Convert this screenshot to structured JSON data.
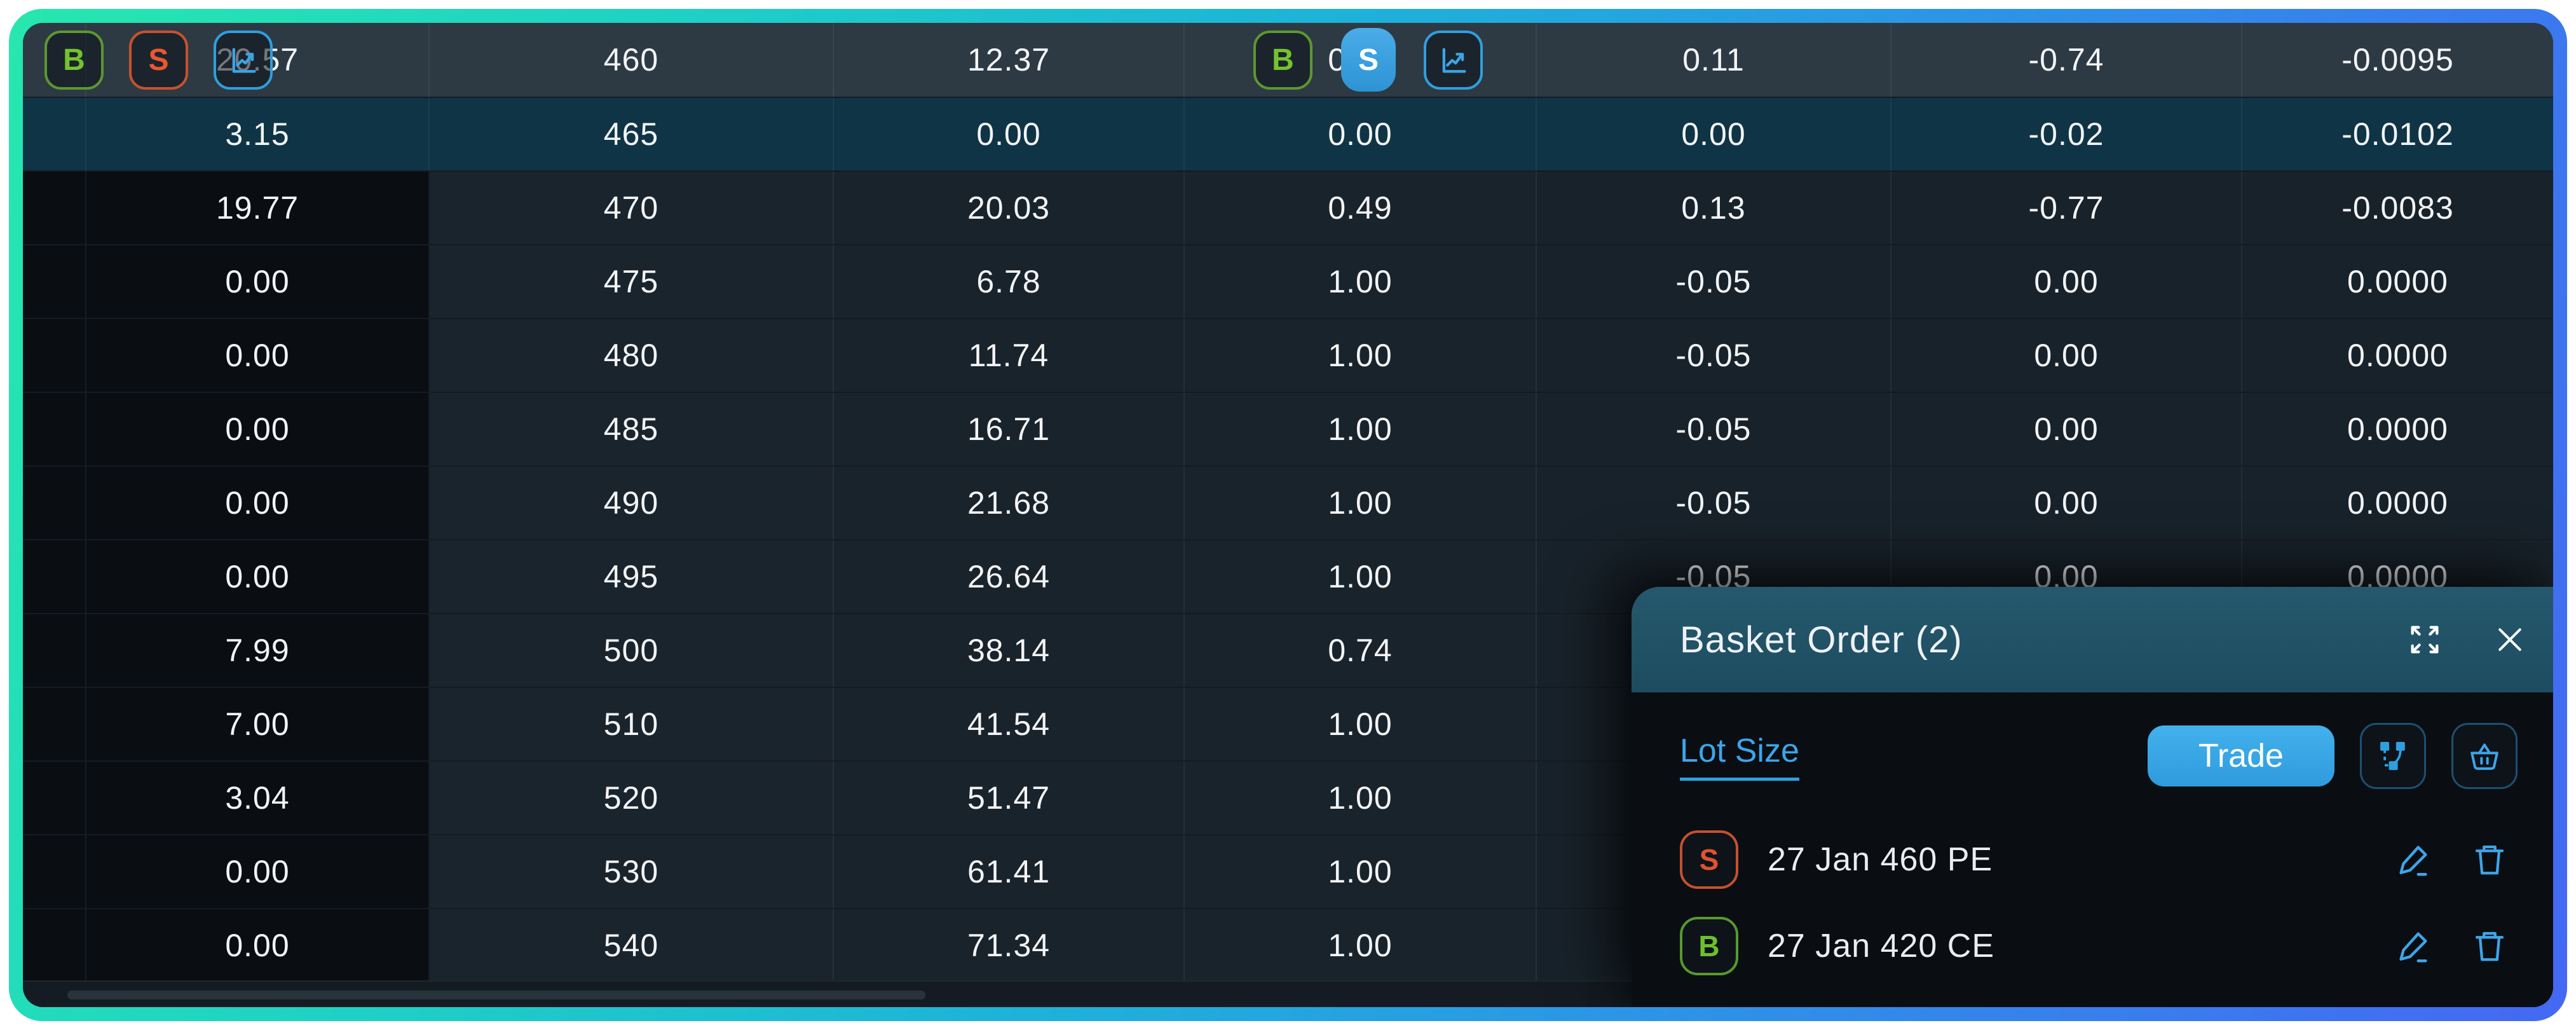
{
  "colors": {
    "accent_blue": "#2f9fe0",
    "buy_green": "#6cbf2d",
    "sell_red": "#e2522e",
    "border_gradient_start": "#27e7ae",
    "border_gradient_end": "#4468f2",
    "row_hover_bg": "#2d3a44",
    "row_atm_bg": "#0f3445",
    "popup_header_bg": "#225468"
  },
  "option_chain": {
    "rows": [
      {
        "c1": "20.57",
        "strike": "460",
        "c3": "12.37",
        "c4": "0.44",
        "c5": "0.11",
        "c6": "-0.74",
        "c7": "-0.0095"
      },
      {
        "c1": "3.15",
        "strike": "465",
        "c3": "0.00",
        "c4": "0.00",
        "c5": "0.00",
        "c6": "-0.02",
        "c7": "-0.0102"
      },
      {
        "c1": "19.77",
        "strike": "470",
        "c3": "20.03",
        "c4": "0.49",
        "c5": "0.13",
        "c6": "-0.77",
        "c7": "-0.0083"
      },
      {
        "c1": "0.00",
        "strike": "475",
        "c3": "6.78",
        "c4": "1.00",
        "c5": "-0.05",
        "c6": "0.00",
        "c7": "0.0000"
      },
      {
        "c1": "0.00",
        "strike": "480",
        "c3": "11.74",
        "c4": "1.00",
        "c5": "-0.05",
        "c6": "0.00",
        "c7": "0.0000"
      },
      {
        "c1": "0.00",
        "strike": "485",
        "c3": "16.71",
        "c4": "1.00",
        "c5": "-0.05",
        "c6": "0.00",
        "c7": "0.0000"
      },
      {
        "c1": "0.00",
        "strike": "490",
        "c3": "21.68",
        "c4": "1.00",
        "c5": "-0.05",
        "c6": "0.00",
        "c7": "0.0000"
      },
      {
        "c1": "0.00",
        "strike": "495",
        "c3": "26.64",
        "c4": "1.00",
        "c5": "-0.05",
        "c6": "0.00",
        "c7": "0.0000"
      },
      {
        "c1": "7.99",
        "strike": "500",
        "c3": "38.14",
        "c4": "0.74",
        "c5": "",
        "c6": "",
        "c7": ""
      },
      {
        "c1": "7.00",
        "strike": "510",
        "c3": "41.54",
        "c4": "1.00",
        "c5": "",
        "c6": "",
        "c7": ""
      },
      {
        "c1": "3.04",
        "strike": "520",
        "c3": "51.47",
        "c4": "1.00",
        "c5": "",
        "c6": "",
        "c7": ""
      },
      {
        "c1": "0.00",
        "strike": "530",
        "c3": "61.41",
        "c4": "1.00",
        "c5": "",
        "c6": "",
        "c7": ""
      },
      {
        "c1": "0.00",
        "strike": "540",
        "c3": "71.34",
        "c4": "1.00",
        "c5": "",
        "c6": "",
        "c7": ""
      }
    ]
  },
  "hover_controls": {
    "buy_label": "B",
    "sell_label": "S",
    "chart_icon": "line-chart-icon"
  },
  "basket": {
    "title": "Basket Order (2)",
    "lot_size_label": "Lot Size",
    "trade_label": "Trade",
    "orders": [
      {
        "side": "S",
        "label": "27 Jan 460 PE"
      },
      {
        "side": "B",
        "label": "27 Jan 420 CE"
      }
    ]
  }
}
